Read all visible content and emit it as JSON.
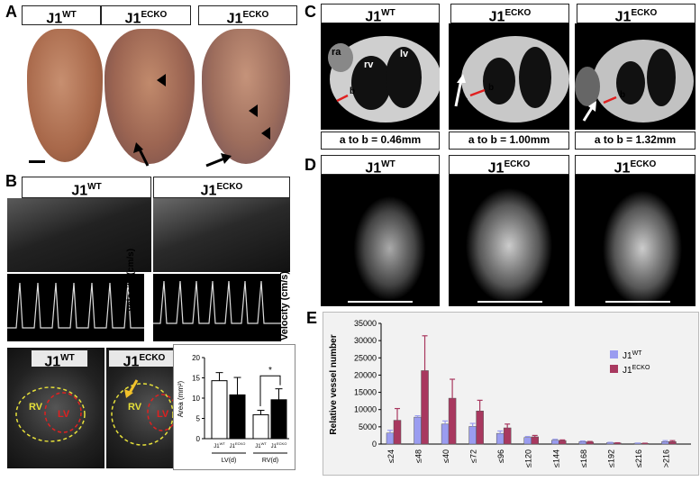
{
  "panels": {
    "A": "A",
    "B": "B",
    "C": "C",
    "D": "D",
    "E": "E"
  },
  "a": {
    "wt": "J1",
    "wt_sup": "WT",
    "ecko": "J1",
    "ecko_sup": "ECKO"
  },
  "b": {
    "wt": "J1",
    "wt_sup": "WT",
    "ecko": "J1",
    "ecko_sup": "ECKO",
    "velocity": "Velocity (cm/s)",
    "echo_wt": "J1",
    "echo_wt_sup": "WT",
    "echo_ecko": "J1",
    "echo_ecko_sup": "ECKO",
    "rv": "RV",
    "lv": "LV",
    "bar": {
      "ylabel": "Area (mm²)",
      "yticks": [
        "0",
        "5",
        "10",
        "15",
        "20"
      ],
      "groups": [
        "LV(d)",
        "RV(d)"
      ],
      "star": "*",
      "bars": [
        {
          "label": "J1",
          "sup": "WT",
          "value": 14.3,
          "err": 2
        },
        {
          "label": "J1",
          "sup": "ECKO",
          "value": 10.8,
          "err": 4.3
        },
        {
          "label": "J1",
          "sup": "WT",
          "value": 5.9,
          "err": 1.1
        },
        {
          "label": "J1",
          "sup": "ECKO",
          "value": 9.6,
          "err": 2.7
        }
      ]
    }
  },
  "c": {
    "wt": "J1",
    "wt_sup": "WT",
    "ecko": "J1",
    "ecko_sup": "ECKO",
    "ra": "ra",
    "rv": "rv",
    "lv": "lv",
    "a": "a",
    "b": "b",
    "cap1": "a to b = 0.46mm",
    "cap2": "a to b = 1.00mm",
    "cap3": "a to b = 1.32mm"
  },
  "d": {
    "wt": "J1",
    "wt_sup": "WT",
    "ecko": "J1",
    "ecko_sup": "ECKO"
  },
  "chart_data": {
    "type": "bar",
    "ylabel": "Relative vessel number",
    "ylim": [
      0,
      35000
    ],
    "yticks": [
      "0",
      "5000",
      "10000",
      "15000",
      "20000",
      "25000",
      "30000",
      "35000"
    ],
    "categories": [
      "≤24",
      "≤48",
      "≤40",
      "≤72",
      "≤96",
      "≤120",
      "≤144",
      "≤168",
      "≤192",
      "≤216",
      ">216"
    ],
    "legend_position": "top-right",
    "series": [
      {
        "name": "J1 WT",
        "label": "J1",
        "sup": "WT",
        "color": "#9a9cf0",
        "values": [
          3200,
          7800,
          5800,
          5100,
          3100,
          1900,
          1100,
          700,
          400,
          250,
          700
        ],
        "errors": [
          800,
          400,
          900,
          900,
          700,
          300,
          300,
          200,
          100,
          50,
          300
        ]
      },
      {
        "name": "J1 ECKO",
        "label": "J1",
        "sup": "ECKO",
        "color": "#a8385f",
        "values": [
          6900,
          21300,
          13300,
          9600,
          4700,
          2100,
          1000,
          600,
          300,
          200,
          700
        ],
        "errors": [
          3400,
          10100,
          5500,
          3100,
          1100,
          400,
          200,
          150,
          80,
          50,
          300
        ]
      }
    ]
  }
}
